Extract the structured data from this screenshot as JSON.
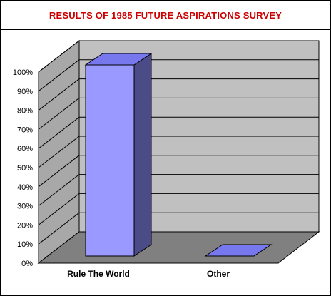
{
  "chart_data": {
    "type": "bar",
    "title": "RESULTS OF 1985 FUTURE ASPIRATIONS SURVEY",
    "categories": [
      "Rule The World",
      "Other"
    ],
    "values": [
      100,
      0
    ],
    "ylim": [
      0,
      100
    ],
    "yticks": [
      "0%",
      "10%",
      "20%",
      "30%",
      "40%",
      "50%",
      "60%",
      "70%",
      "80%",
      "90%",
      "100%"
    ],
    "grid": true,
    "three_d": true,
    "colors": {
      "bar_front": "#9999ff",
      "bar_top": "#7777ee",
      "bar_side": "#4b4b88",
      "back_wall": "#c0c0c0",
      "side_wall": "#a8a8a8",
      "floor": "#808080",
      "title": "#cc0000"
    }
  }
}
